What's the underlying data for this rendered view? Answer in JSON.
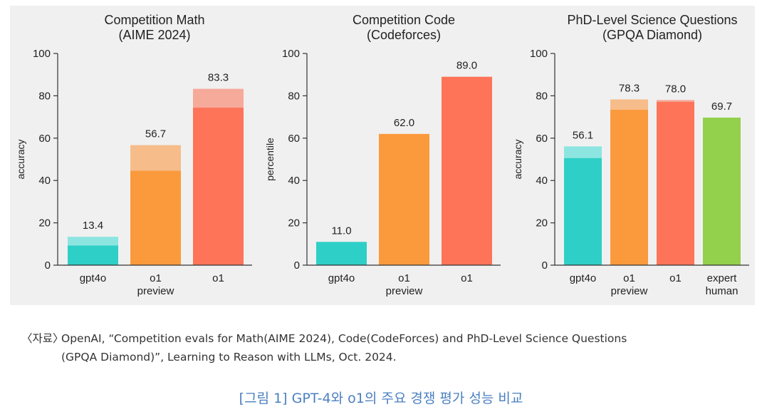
{
  "chart_data": [
    {
      "type": "bar",
      "title": "Competition Math\n(AIME 2024)",
      "ylabel": "accuracy",
      "ylim": [
        0,
        100
      ],
      "yticks": [
        0,
        20,
        40,
        60,
        80,
        100
      ],
      "categories": [
        "gpt4o",
        "o1\npreview",
        "o1"
      ],
      "values": [
        13.4,
        56.7,
        83.3
      ],
      "base_values": [
        9.3,
        44.6,
        74.4
      ],
      "value_labels": [
        "13.4",
        "56.7",
        "83.3"
      ],
      "colors": [
        "#2ecfc6",
        "#fb9a3d",
        "#fe7459"
      ],
      "light_colors": [
        "#8ce5e0",
        "#f6bd8a",
        "#f5aa9a"
      ]
    },
    {
      "type": "bar",
      "title": "Competition Code\n(Codeforces)",
      "ylabel": "percentile",
      "ylim": [
        0,
        100
      ],
      "yticks": [
        0,
        20,
        40,
        60,
        80,
        100
      ],
      "categories": [
        "gpt4o",
        "o1\npreview",
        "o1"
      ],
      "values": [
        11.0,
        62.0,
        89.0
      ],
      "base_values": [
        11.0,
        62.0,
        89.0
      ],
      "value_labels": [
        "11.0",
        "62.0",
        "89.0"
      ],
      "colors": [
        "#2ecfc6",
        "#fb9a3d",
        "#fe7459"
      ],
      "light_colors": [
        "#8ce5e0",
        "#f6bd8a",
        "#f5aa9a"
      ]
    },
    {
      "type": "bar",
      "title": "PhD-Level Science Questions\n(GPQA Diamond)",
      "ylabel": "accuracy",
      "ylim": [
        0,
        100
      ],
      "yticks": [
        0,
        20,
        40,
        60,
        80,
        100
      ],
      "categories": [
        "gpt4o",
        "o1\npreview",
        "o1",
        "expert\nhuman"
      ],
      "values": [
        56.1,
        78.3,
        78.0,
        69.7
      ],
      "base_values": [
        50.6,
        73.4,
        77.2,
        69.7
      ],
      "value_labels": [
        "56.1",
        "78.3",
        "78.0",
        "69.7"
      ],
      "colors": [
        "#2ecfc6",
        "#fb9a3d",
        "#fe7459",
        "#93d04b"
      ],
      "light_colors": [
        "#8ce5e0",
        "#f6bd8a",
        "#f5aa9a",
        "#c3e89a"
      ]
    }
  ],
  "source": {
    "prefix": "〈자료〉",
    "line1": "OpenAI, “Competition evals for Math(AIME 2024), Code(CodeForces) and PhD-Level Science Questions",
    "line2": "(GPQA Diamond)”, Learning to Reason with LLMs, Oct. 2024."
  },
  "caption": "[그림 1] GPT-4와 o1의 주요 경쟁 평가 성능 비교"
}
